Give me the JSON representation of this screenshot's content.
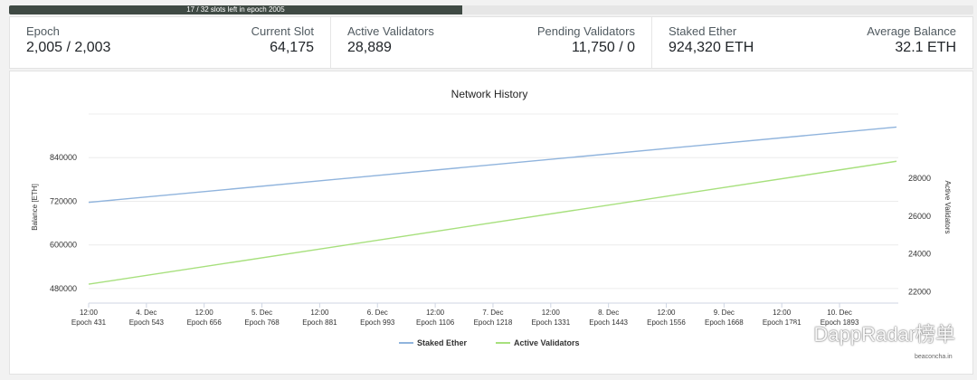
{
  "slots_bar": {
    "text": "17 / 32 slots left in epoch 2005",
    "fill_fraction": 0.47
  },
  "stats": {
    "epoch": {
      "label": "Epoch",
      "value": "2,005 / 2,003"
    },
    "current_slot": {
      "label": "Current Slot",
      "value": "64,175"
    },
    "active_validators": {
      "label": "Active Validators",
      "value": "28,889"
    },
    "pending_validators": {
      "label": "Pending Validators",
      "value": "11,750 / 0"
    },
    "staked_ether": {
      "label": "Staked Ether",
      "value": "924,320 ETH"
    },
    "average_balance": {
      "label": "Average Balance",
      "value": "32.1 ETH"
    }
  },
  "chart_data": {
    "type": "line",
    "title": "Network History",
    "ylabel": "Balance [ETH]",
    "y2label": "Active Validators",
    "grid": true,
    "legend": "bottom",
    "ylim": [
      440000,
      960000
    ],
    "y2lim": [
      21400,
      31400
    ],
    "yticks": [
      480000,
      600000,
      720000,
      840000
    ],
    "y2ticks": [
      22000,
      24000,
      26000,
      28000
    ],
    "x_ticks": [
      {
        "top": "12:00",
        "bottom": "Epoch 431"
      },
      {
        "top": "4. Dec",
        "bottom": "Epoch 543"
      },
      {
        "top": "12:00",
        "bottom": "Epoch 656"
      },
      {
        "top": "5. Dec",
        "bottom": "Epoch 768"
      },
      {
        "top": "12:00",
        "bottom": "Epoch 881"
      },
      {
        "top": "6. Dec",
        "bottom": "Epoch 993"
      },
      {
        "top": "12:00",
        "bottom": "Epoch 1106"
      },
      {
        "top": "7. Dec",
        "bottom": "Epoch 1218"
      },
      {
        "top": "12:00",
        "bottom": "Epoch 1331"
      },
      {
        "top": "8. Dec",
        "bottom": "Epoch 1443"
      },
      {
        "top": "12:00",
        "bottom": "Epoch 1556"
      },
      {
        "top": "9. Dec",
        "bottom": "Epoch 1668"
      },
      {
        "top": "12:00",
        "bottom": "Epoch 1781"
      },
      {
        "top": "10. Dec",
        "bottom": "Epoch 1893"
      }
    ],
    "x": [
      431,
      2003
    ],
    "series": [
      {
        "name": "Staked Ether",
        "axis": "left",
        "color": "#90b4dd",
        "values": [
          717000,
          924000
        ]
      },
      {
        "name": "Active Validators",
        "axis": "right",
        "color": "#a7e07d",
        "values": [
          22400,
          28900
        ]
      }
    ]
  },
  "footer": {
    "credit": "beaconcha.in",
    "watermark": "DappRadar榜单"
  }
}
